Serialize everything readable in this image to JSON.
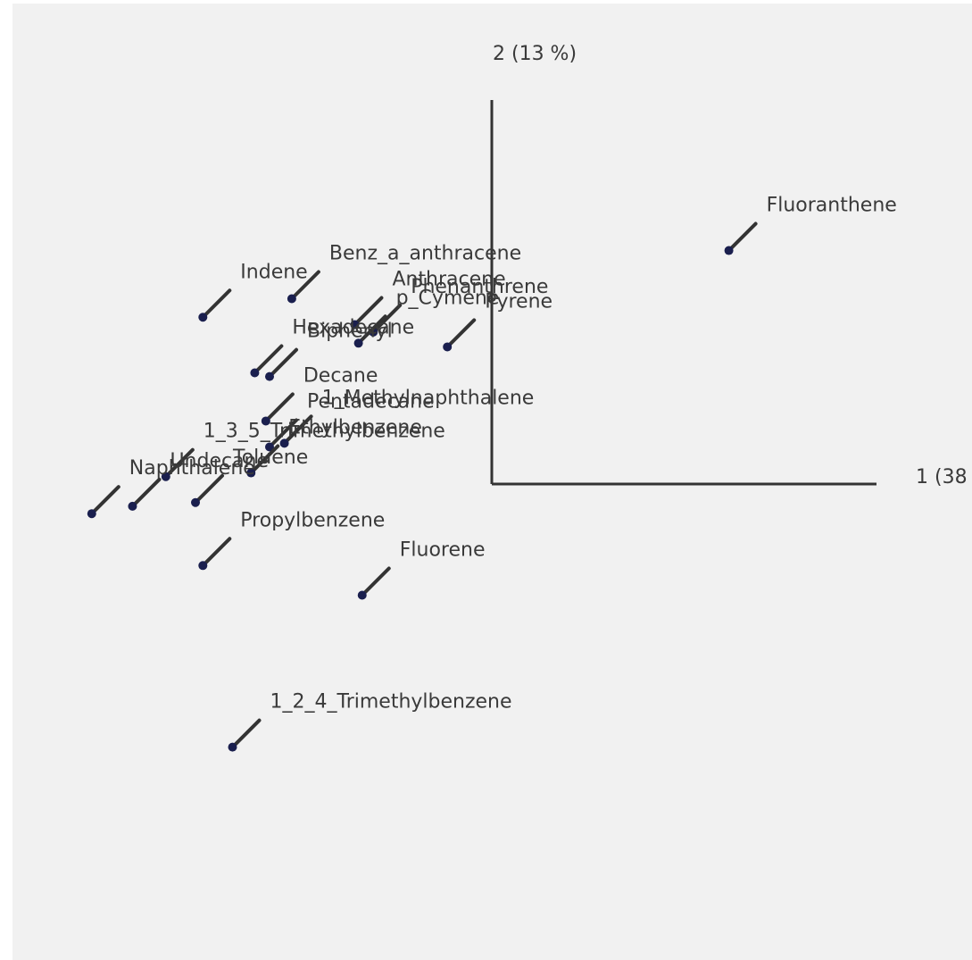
{
  "chart_data": {
    "type": "scatter",
    "xlabel": "1 (38",
    "ylabel": "2 (13 %)",
    "points": [
      {
        "label": "Fluoranthene",
        "x": 6.4,
        "y": 6.3
      },
      {
        "label": "Benz_a_anthracene",
        "x": -5.4,
        "y": 5.0
      },
      {
        "label": "Indene",
        "x": -7.8,
        "y": 4.5
      },
      {
        "label": "Anthracene",
        "x": -3.7,
        "y": 4.3
      },
      {
        "label": "Phenanthrene",
        "x": -3.2,
        "y": 4.1
      },
      {
        "label": "Pyrene",
        "x": -1.2,
        "y": 3.7
      },
      {
        "label": "p_Cymene",
        "x": -3.6,
        "y": 3.8
      },
      {
        "label": "Hexadecane",
        "x": -6.4,
        "y": 3.0
      },
      {
        "label": "Biphenyl",
        "x": -6.0,
        "y": 2.9
      },
      {
        "label": "Decane",
        "x": -6.1,
        "y": 1.7
      },
      {
        "label": "Pentadecane",
        "x": -6.0,
        "y": 1.0
      },
      {
        "label": "1_Methylnaphthalene",
        "x": -5.6,
        "y": 1.1
      },
      {
        "label": "1_3_5_Trimethylbenzene",
        "x": -8.8,
        "y": 0.2
      },
      {
        "label": "Ethylbenzene",
        "x": -6.5,
        "y": 0.3
      },
      {
        "label": "Naphthalene",
        "x": -10.8,
        "y": -0.8
      },
      {
        "label": "Undecane",
        "x": -9.7,
        "y": -0.6
      },
      {
        "label": "Toluene",
        "x": -8.0,
        "y": -0.5
      },
      {
        "label": "Propylbenzene",
        "x": -7.8,
        "y": -2.2
      },
      {
        "label": "Fluorene",
        "x": -3.5,
        "y": -3.0
      },
      {
        "label": "1_2_4_Trimethylbenzene",
        "x": -7.0,
        "y": -7.1
      }
    ]
  }
}
